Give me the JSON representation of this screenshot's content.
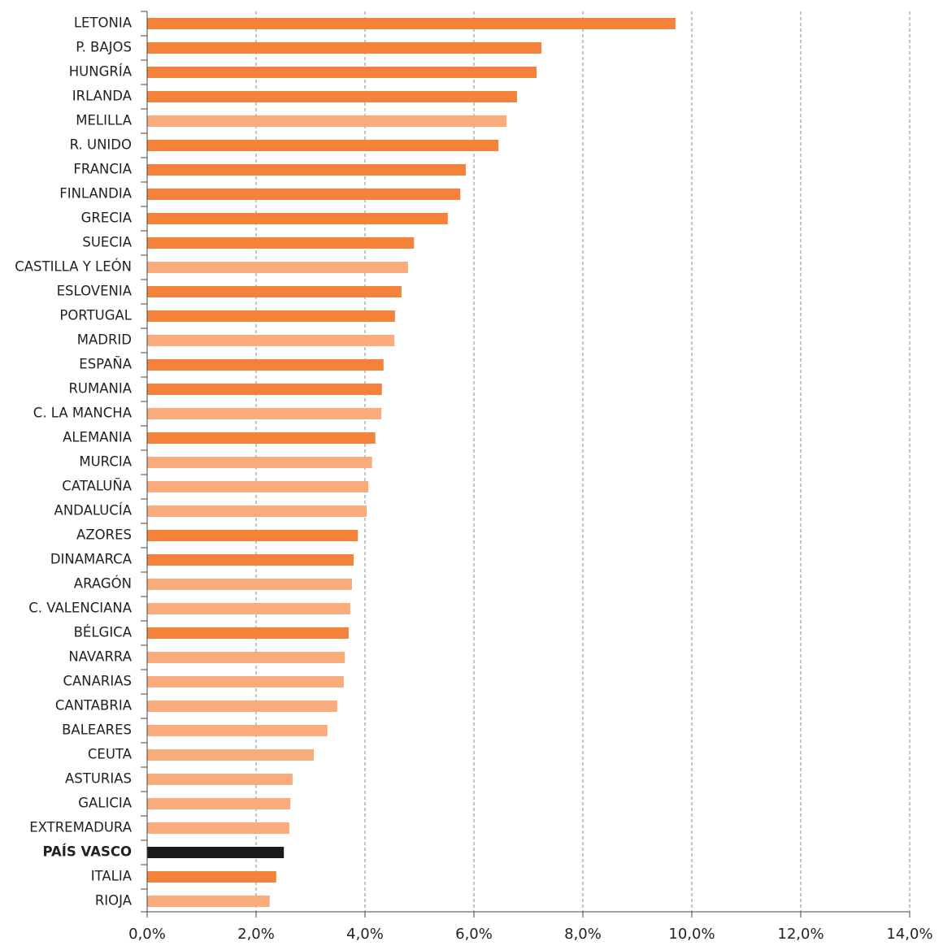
{
  "chart_data": {
    "type": "barh",
    "categories": [
      "LETONIA",
      "P. BAJOS",
      "HUNGRÍA",
      "IRLANDA",
      "MELILLA",
      "R. UNIDO",
      "FRANCIA",
      "FINLANDIA",
      "GRECIA",
      "SUECIA",
      "CASTILLA Y LEÓN",
      "ESLOVENIA",
      "PORTUGAL",
      "MADRID",
      "ESPAÑA",
      "RUMANIA",
      "C. LA MANCHA",
      "ALEMANIA",
      "MURCIA",
      "CATALUÑA",
      "ANDALUCÍA",
      "AZORES",
      "DINAMARCA",
      "ARAGÓN",
      "C. VALENCIANA",
      "BÉLGICA",
      "NAVARRA",
      "CANARIAS",
      "CANTABRIA",
      "BALEARES",
      "CEUTA",
      "ASTURIAS",
      "GALICIA",
      "EXTREMADURA",
      "PAÍS VASCO",
      "ITALIA",
      "RIOJA"
    ],
    "values": [
      9.7,
      7.24,
      7.15,
      6.79,
      6.6,
      6.45,
      5.85,
      5.75,
      5.52,
      4.9,
      4.79,
      4.67,
      4.55,
      4.54,
      4.34,
      4.31,
      4.3,
      4.19,
      4.13,
      4.06,
      4.03,
      3.87,
      3.79,
      3.76,
      3.73,
      3.7,
      3.63,
      3.61,
      3.49,
      3.31,
      3.06,
      2.67,
      2.63,
      2.61,
      2.51,
      2.37,
      2.25
    ],
    "colors": [
      "#f4823a",
      "#f4823a",
      "#f4823a",
      "#f4823a",
      "#f8ac7c",
      "#f4823a",
      "#f4823a",
      "#f4823a",
      "#f4823a",
      "#f4823a",
      "#f8ac7c",
      "#f4823a",
      "#f4823a",
      "#f8ac7c",
      "#f4823a",
      "#f4823a",
      "#f8ac7c",
      "#f4823a",
      "#f8ac7c",
      "#f8ac7c",
      "#f8ac7c",
      "#f4823a",
      "#f4823a",
      "#f8ac7c",
      "#f8ac7c",
      "#f4823a",
      "#f8ac7c",
      "#f8ac7c",
      "#f8ac7c",
      "#f8ac7c",
      "#f8ac7c",
      "#f8ac7c",
      "#f8ac7c",
      "#f8ac7c",
      "#1c1a1d",
      "#f4823a",
      "#f8ac7c"
    ],
    "highlight_color": "#1c1a1d",
    "xlim": [
      0,
      14
    ],
    "xticks": [
      {
        "value": 0,
        "label": "0,0%"
      },
      {
        "value": 2,
        "label": "2,0%"
      },
      {
        "value": 4,
        "label": "4,0%"
      },
      {
        "value": 6,
        "label": "6,0%"
      },
      {
        "value": 8,
        "label": "8,0%"
      },
      {
        "value": 10,
        "label": "10,0%"
      },
      {
        "value": 12,
        "label": "12,0%"
      },
      {
        "value": 14,
        "label": "14,0%"
      }
    ],
    "grid": true
  }
}
